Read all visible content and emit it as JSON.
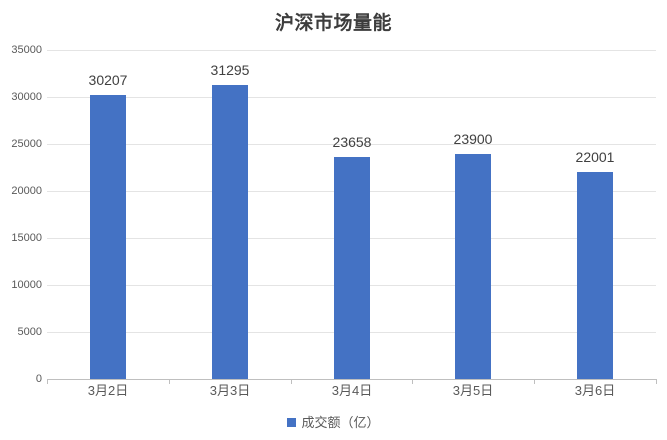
{
  "chart_data": {
    "type": "bar",
    "title": "沪深市场量能",
    "categories": [
      "3月2日",
      "3月3日",
      "3月4日",
      "3月5日",
      "3月6日"
    ],
    "series": [
      {
        "name": "成交额（亿）",
        "values": [
          30207,
          31295,
          23658,
          23900,
          22001
        ]
      }
    ],
    "data_labels": [
      "30207",
      "31295",
      "23658",
      "23900",
      "22001"
    ],
    "ylim": [
      0,
      35000
    ],
    "ytick_step": 5000,
    "y_tick_labels": [
      "35000",
      "30000",
      "25000",
      "20000",
      "15000",
      "10000",
      "5000",
      "0"
    ],
    "grid": true,
    "legend_position": "bottom",
    "colors": {
      "bar": "#4472c4",
      "gridline": "#e4e4e4",
      "axis_line": "#bfbfbf",
      "title_text": "#3d3d3d",
      "axis_text": "#595959",
      "data_label_text": "#404040"
    }
  },
  "legend": {
    "label": "成交额（亿）",
    "swatch_color": "#4472c4"
  }
}
